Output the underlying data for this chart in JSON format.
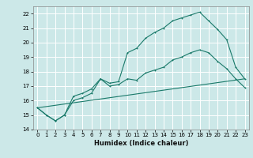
{
  "title": "",
  "xlabel": "Humidex (Indice chaleur)",
  "bg_color": "#cce8e8",
  "grid_color": "#ffffff",
  "line_color": "#1a7a6a",
  "xlim": [
    -0.5,
    23.5
  ],
  "ylim": [
    14,
    22.5
  ],
  "xticks": [
    0,
    1,
    2,
    3,
    4,
    5,
    6,
    7,
    8,
    9,
    10,
    11,
    12,
    13,
    14,
    15,
    16,
    17,
    18,
    19,
    20,
    21,
    22,
    23
  ],
  "yticks": [
    14,
    15,
    16,
    17,
    18,
    19,
    20,
    21,
    22
  ],
  "line1_x": [
    0,
    1,
    2,
    3,
    4,
    5,
    6,
    7,
    8,
    9,
    10,
    11,
    12,
    13,
    14,
    15,
    16,
    17,
    18,
    19,
    20,
    21,
    22,
    23
  ],
  "line1_y": [
    15.5,
    15.0,
    14.6,
    15.0,
    16.3,
    16.5,
    16.8,
    17.5,
    17.2,
    17.3,
    19.3,
    19.6,
    20.3,
    20.7,
    21.0,
    21.5,
    21.7,
    21.9,
    22.1,
    21.5,
    20.9,
    20.2,
    18.3,
    17.5
  ],
  "line2_x": [
    0,
    1,
    2,
    3,
    4,
    5,
    6,
    7,
    8,
    9,
    10,
    11,
    12,
    13,
    14,
    15,
    16,
    17,
    18,
    19,
    20,
    21,
    22,
    23
  ],
  "line2_y": [
    15.5,
    15.0,
    14.6,
    15.0,
    16.0,
    16.2,
    16.5,
    17.5,
    17.0,
    17.1,
    17.5,
    17.4,
    17.9,
    18.1,
    18.3,
    18.8,
    19.0,
    19.3,
    19.5,
    19.3,
    18.7,
    18.2,
    17.5,
    16.9
  ],
  "line3_x": [
    0,
    23
  ],
  "line3_y": [
    15.5,
    17.5
  ],
  "xlabel_fontsize": 6,
  "tick_fontsize": 5,
  "lw": 0.8,
  "ms": 2.0
}
